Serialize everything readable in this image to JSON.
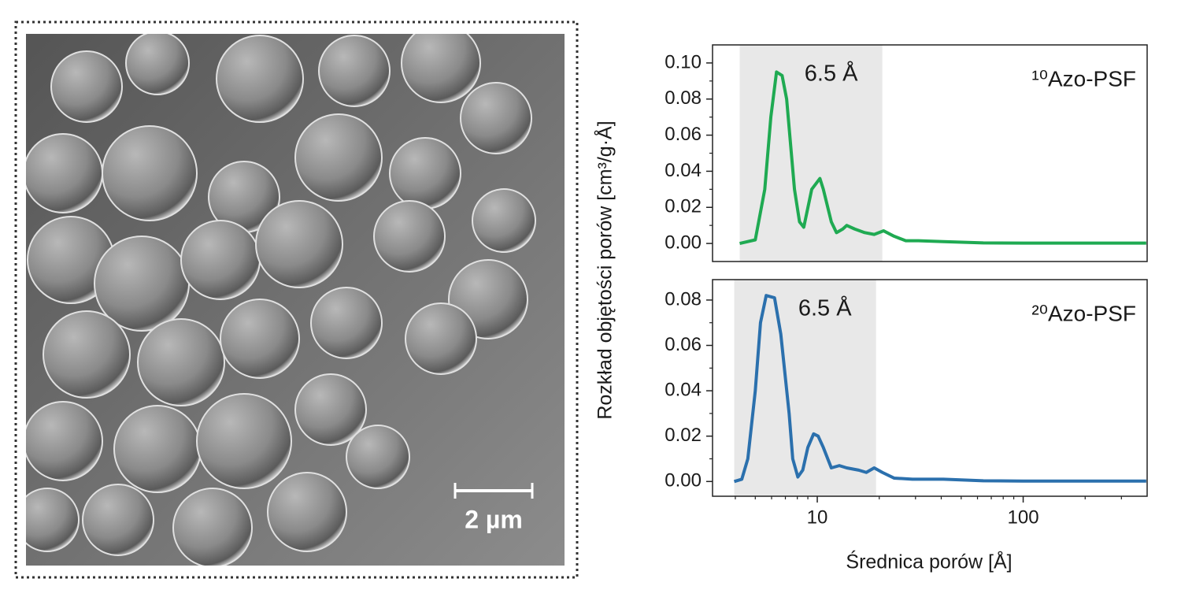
{
  "image": {
    "scale_bar": "2 µm"
  },
  "chart_data": [
    {
      "type": "line",
      "xscale": "log",
      "xlim": [
        3.1,
        400
      ],
      "ylim": [
        -0.01,
        0.11
      ],
      "ylabel": "Rozkład objętości porów [cm³/g·Å]",
      "yticks": [
        {
          "value": 0,
          "label": "0.00"
        },
        {
          "value": 0.02,
          "label": "0.02"
        },
        {
          "value": 0.04,
          "label": "0.04"
        },
        {
          "value": 0.06,
          "label": "0.06"
        },
        {
          "value": 0.08,
          "label": "0.08"
        },
        {
          "value": 0.1,
          "label": "0.10"
        }
      ],
      "yminorticks": [
        0.01,
        0.03,
        0.05,
        0.07,
        0.09
      ],
      "shade": [
        4.2,
        20.7
      ],
      "annotation": "6.5 Å",
      "x": [
        4.2,
        5.0,
        5.56,
        5.95,
        6.34,
        6.75,
        7.1,
        7.75,
        8.2,
        8.6,
        9.4,
        10.3,
        10.7,
        11.7,
        12.4,
        13.3,
        13.9,
        15.2,
        17,
        18.9,
        21,
        23.6,
        26.9,
        31,
        41,
        64,
        100,
        396
      ],
      "series": [
        {
          "name": "¹⁰Azo-PSF",
          "color": "#1faa52",
          "values": [
            0,
            0.002,
            0.03,
            0.07,
            0.095,
            0.093,
            0.08,
            0.03,
            0.012,
            0.009,
            0.03,
            0.036,
            0.03,
            0.012,
            0.006,
            0.008,
            0.01,
            0.008,
            0.006,
            0.005,
            0.007,
            0.004,
            0.0015,
            0.0015,
            0.001,
            0.0003,
            0.0002,
            0.0002
          ]
        }
      ]
    },
    {
      "type": "line",
      "xscale": "log",
      "xlim": [
        3.1,
        400
      ],
      "ylim": [
        -0.0065,
        0.089
      ],
      "xlabel": "Średnica porów [Å]",
      "xticks": [
        10,
        100
      ],
      "xminorticks": [
        4,
        5,
        6,
        7,
        8,
        9,
        20,
        30,
        40,
        50,
        60,
        70,
        80,
        90,
        200,
        300
      ],
      "yticks": [
        {
          "value": 0,
          "label": "0.00"
        },
        {
          "value": 0.02,
          "label": "0.02"
        },
        {
          "value": 0.04,
          "label": "0.04"
        },
        {
          "value": 0.06,
          "label": "0.06"
        },
        {
          "value": 0.08,
          "label": "0.08"
        }
      ],
      "yminorticks": [
        0.01,
        0.03,
        0.05,
        0.07
      ],
      "shade": [
        3.95,
        19.3
      ],
      "annotation": "6.5 Å",
      "x": [
        3.95,
        4.3,
        4.6,
        5.0,
        5.3,
        5.65,
        6.2,
        6.65,
        7.3,
        7.6,
        8.05,
        8.5,
        9.0,
        9.6,
        10.1,
        10.7,
        11.7,
        12.8,
        13.9,
        15.9,
        17.3,
        18.9,
        20.7,
        23.6,
        29,
        41,
        64,
        100,
        396
      ],
      "series": [
        {
          "name": "²⁰Azo-PSF",
          "color": "#2b70ad",
          "values": [
            0,
            0.001,
            0.01,
            0.04,
            0.07,
            0.082,
            0.081,
            0.065,
            0.03,
            0.01,
            0.002,
            0.005,
            0.015,
            0.021,
            0.02,
            0.015,
            0.006,
            0.007,
            0.006,
            0.005,
            0.004,
            0.006,
            0.004,
            0.0015,
            0.001,
            0.001,
            0.0003,
            0.0002,
            0.0002
          ]
        }
      ]
    }
  ]
}
